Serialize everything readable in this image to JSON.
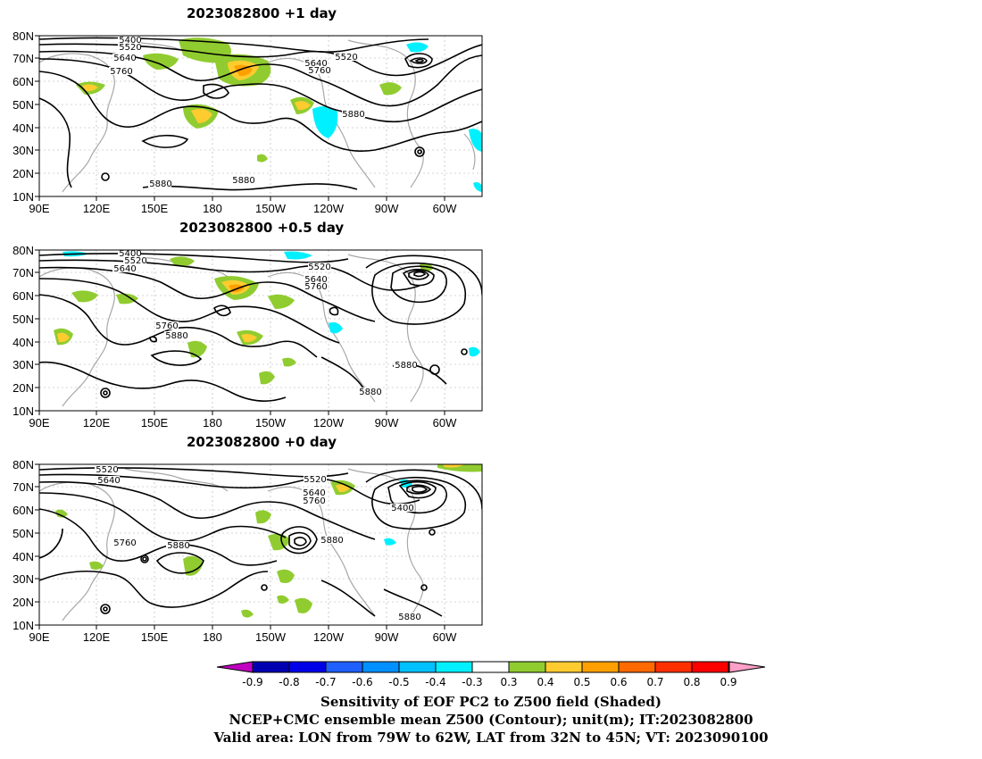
{
  "panels": [
    {
      "title": "2023082800  +1 day",
      "contour_labels": [
        "5400",
        "5520",
        "5640",
        "5760",
        "5640",
        "5760",
        "5520",
        "5880",
        "5880",
        "5880"
      ]
    },
    {
      "title": "2023082800  +0.5 day",
      "contour_labels": [
        "5400",
        "5520",
        "5640",
        "5520",
        "5640",
        "5760",
        "5760",
        "5880",
        "5880",
        "5880"
      ]
    },
    {
      "title": "2023082800  +0 day",
      "contour_labels": [
        "5520",
        "5640",
        "5520",
        "5640",
        "5760",
        "5400",
        "5760",
        "5880",
        "5880",
        "5880"
      ]
    }
  ],
  "axes": {
    "lat_labels": [
      "80N",
      "70N",
      "60N",
      "50N",
      "40N",
      "30N",
      "20N",
      "10N"
    ],
    "lon_labels": [
      "90E",
      "120E",
      "150E",
      "180",
      "150W",
      "120W",
      "90W",
      "60W"
    ]
  },
  "colorbar": {
    "ticks": [
      "-0.9",
      "-0.8",
      "-0.7",
      "-0.6",
      "-0.5",
      "-0.4",
      "-0.3",
      "0.3",
      "0.4",
      "0.5",
      "0.6",
      "0.7",
      "0.8",
      "0.9"
    ],
    "low_arrow_color": "#c000c0",
    "high_arrow_color": "#ffa0c8",
    "colors": [
      "#0000b0",
      "#0000e8",
      "#2060ff",
      "#0090ff",
      "#00c0ff",
      "#00f0ff",
      "#ffffff",
      "#90cc30",
      "#ffcc30",
      "#ffa000",
      "#ff6a00",
      "#ff3000",
      "#ff0000"
    ]
  },
  "footer": {
    "line1": "Sensitivity of EOF PC2 to Z500 field (Shaded)",
    "line2": "NCEP+CMC ensemble mean Z500 (Contour); unit(m); IT:2023082800",
    "line3": "Valid area: LON from 79W to 62W, LAT from 32N to 45N; VT: 2023090100"
  }
}
